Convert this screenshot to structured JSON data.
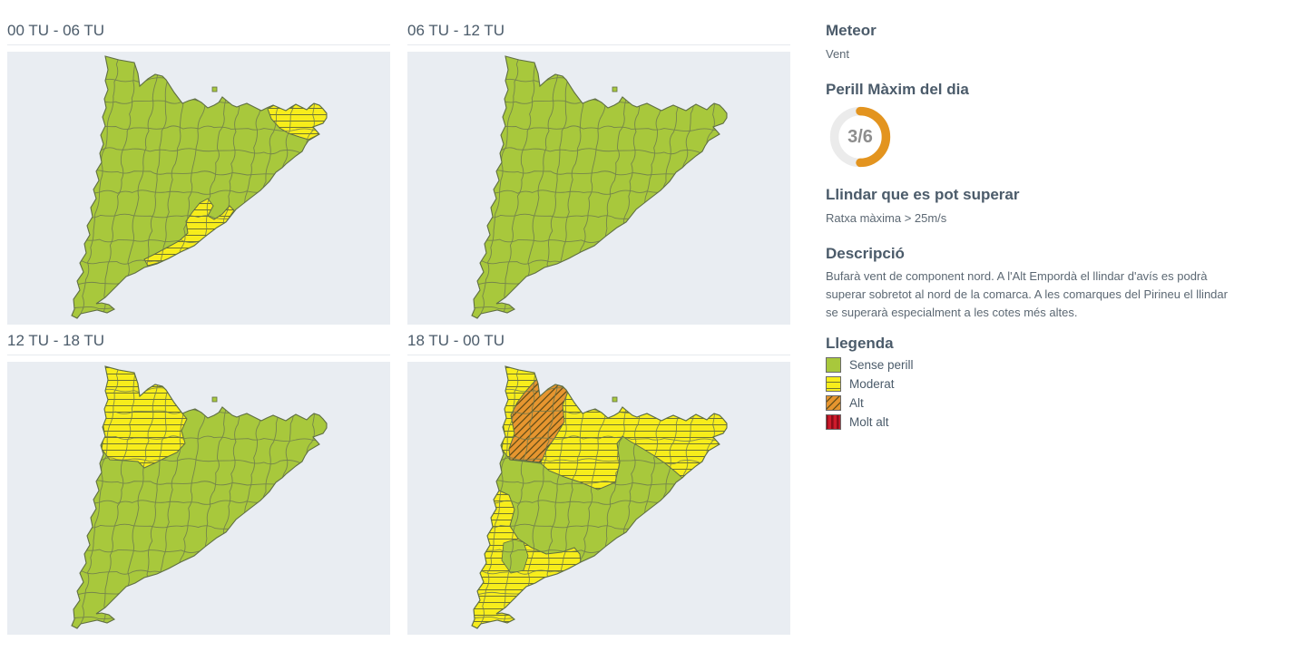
{
  "colors": {
    "sense_perill": "#a8c83c",
    "moderat": "#f7ed1b",
    "alt": "#e6952f",
    "molt_alt": "#cf1b2b",
    "gauge_arc": "#e3941f",
    "gauge_track": "#ebebeb",
    "panel_bg": "#e9edf2"
  },
  "maps": [
    {
      "title": "00 TU - 06 TU",
      "zones": [
        {
          "id": "alt-emporda",
          "level": "moderat"
        },
        {
          "id": "bcn-coast",
          "level": "moderat"
        }
      ]
    },
    {
      "title": "06 TU - 12 TU",
      "zones": []
    },
    {
      "title": "12 TU - 18 TU",
      "zones": [
        {
          "id": "nw-pyrenees",
          "level": "moderat"
        }
      ]
    },
    {
      "title": "18 TU - 00 TU",
      "zones": [
        {
          "id": "north-band",
          "level": "moderat"
        },
        {
          "id": "nw-high",
          "level": "alt"
        },
        {
          "id": "west-south",
          "level": "moderat"
        }
      ]
    }
  ],
  "sidebar": {
    "meteor_heading": "Meteor",
    "meteor_value": "Vent",
    "max_danger_heading": "Perill Màxim del dia",
    "gauge": {
      "value": 3,
      "max": 6,
      "label": "3/6"
    },
    "threshold_heading": "Llindar que es pot superar",
    "threshold_value": "Ratxa màxima > 25m/s",
    "description_heading": "Descripció",
    "description_text": "Bufarà vent de component nord. A l'Alt Empordà el llindar d'avís es podrà superar sobretot al nord de la comarca. A les comarques del Pirineu el llindar se superarà especialment a les cotes més altes.",
    "legend_heading": "Llegenda",
    "legend_items": [
      {
        "label": "Sense perill",
        "level": "sense-perill"
      },
      {
        "label": "Moderat",
        "level": "moderat"
      },
      {
        "label": "Alt",
        "level": "alt"
      },
      {
        "label": "Molt alt",
        "level": "molt-alt"
      }
    ]
  }
}
